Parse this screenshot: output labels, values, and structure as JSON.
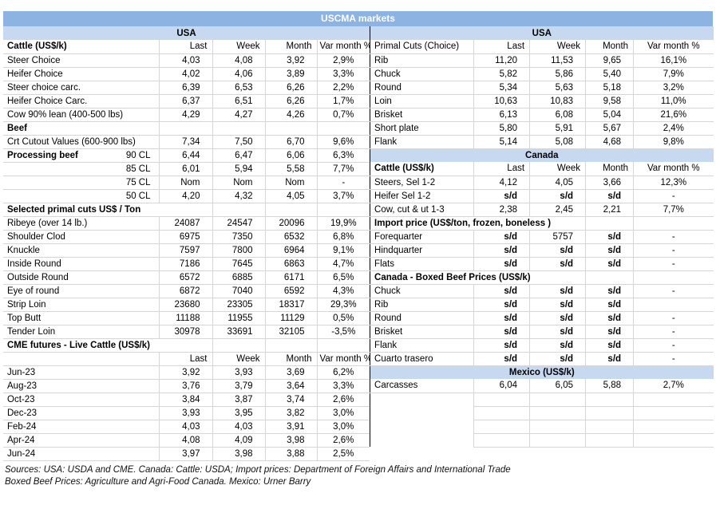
{
  "title": "USCMA markets",
  "colors": {
    "title_bg": "#8db3e2",
    "band_bg": "#c6d9f1",
    "grid": "#d6d6d6",
    "divider": "#000000"
  },
  "columns": [
    "Last",
    "Week",
    "Month",
    "Var month %"
  ],
  "left_table": {
    "rows": [
      {
        "t": "band",
        "label": "USA"
      },
      {
        "t": "row",
        "label": "Cattle (US$/k)",
        "bold": true,
        "header": true,
        "values": [
          "Last",
          "Week",
          "Month",
          "Var month %"
        ]
      },
      {
        "t": "row",
        "label": "Steer Choice",
        "values": [
          "4,03",
          "4,08",
          "3,92",
          "2,9%"
        ]
      },
      {
        "t": "row",
        "label": "Heifer Choice",
        "values": [
          "4,02",
          "4,06",
          "3,89",
          "3,3%"
        ]
      },
      {
        "t": "row",
        "label": "Steer choice carc.",
        "values": [
          "6,39",
          "6,53",
          "6,26",
          "2,2%"
        ]
      },
      {
        "t": "row",
        "label": "Heifer Choice Carc.",
        "values": [
          "6,37",
          "6,51",
          "6,26",
          "1,7%"
        ]
      },
      {
        "t": "row",
        "label": "Cow 90% lean (400-500 lbs)",
        "values": [
          "4,29",
          "4,27",
          "4,26",
          "0,7%"
        ]
      },
      {
        "t": "row",
        "label": "Beef",
        "bold": true,
        "values": [
          "",
          "",
          "",
          ""
        ]
      },
      {
        "t": "row",
        "label": "Crt Cutout Values (600-900 lbs)",
        "values": [
          "7,34",
          "7,50",
          "6,70",
          "9,6%"
        ]
      },
      {
        "t": "row",
        "label": "Processing beef",
        "label_right": "90 CL",
        "bold": true,
        "values": [
          "6,44",
          "6,47",
          "6,06",
          "6,3%"
        ]
      },
      {
        "t": "row",
        "label": "85 CL",
        "align": "right",
        "values": [
          "6,01",
          "5,94",
          "5,58",
          "7,7%"
        ]
      },
      {
        "t": "row",
        "label": "75 CL",
        "align": "right",
        "values": [
          "Nom",
          "Nom",
          "Nom",
          "-"
        ]
      },
      {
        "t": "row",
        "label": "50 CL",
        "align": "right",
        "values": [
          "4,20",
          "4,32",
          "4,05",
          "3,7%"
        ]
      },
      {
        "t": "row",
        "label": "Selected primal cuts US$ / Ton",
        "bold": true,
        "span": 2,
        "values": [
          "",
          "",
          ""
        ]
      },
      {
        "t": "row",
        "label": "Ribeye (over 14 lb.)",
        "values": [
          "24087",
          "24547",
          "20096",
          "19,9%"
        ]
      },
      {
        "t": "row",
        "label": "Shoulder Clod",
        "values": [
          "6975",
          "7350",
          "6532",
          "6,8%"
        ]
      },
      {
        "t": "row",
        "label": "Knuckle",
        "values": [
          "7597",
          "7800",
          "6964",
          "9,1%"
        ]
      },
      {
        "t": "row",
        "label": "Inside Round",
        "values": [
          "7186",
          "7645",
          "6863",
          "4,7%"
        ]
      },
      {
        "t": "row",
        "label": "Outside Round",
        "values": [
          "6572",
          "6885",
          "6171",
          "6,5%"
        ]
      },
      {
        "t": "row",
        "label": "Eye of round",
        "values": [
          "6872",
          "7040",
          "6592",
          "4,3%"
        ]
      },
      {
        "t": "row",
        "label": "Strip Loin",
        "values": [
          "23680",
          "23305",
          "18317",
          "29,3%"
        ]
      },
      {
        "t": "row",
        "label": "Top Butt",
        "values": [
          "11188",
          "11955",
          "11129",
          "0,5%"
        ]
      },
      {
        "t": "row",
        "label": "Tender Loin",
        "values": [
          "30978",
          "33691",
          "32105",
          "-3,5%"
        ]
      },
      {
        "t": "row",
        "label": "CME futures - Live Cattle (US$/k)",
        "bold": true,
        "span": 2,
        "values": [
          "",
          "",
          ""
        ]
      },
      {
        "t": "row",
        "label": "",
        "header": true,
        "values": [
          "Last",
          "Week",
          "Month",
          "Var month %"
        ]
      },
      {
        "t": "row",
        "label": "Jun-23",
        "values": [
          "3,92",
          "3,93",
          "3,69",
          "6,2%"
        ]
      },
      {
        "t": "row",
        "label": "Aug-23",
        "values": [
          "3,76",
          "3,79",
          "3,64",
          "3,3%"
        ]
      },
      {
        "t": "row",
        "label": "Oct-23",
        "values": [
          "3,84",
          "3,87",
          "3,74",
          "2,6%"
        ]
      },
      {
        "t": "row",
        "label": "Dec-23",
        "values": [
          "3,93",
          "3,95",
          "3,82",
          "3,0%"
        ]
      },
      {
        "t": "row",
        "label": "Feb-24",
        "values": [
          "4,03",
          "4,03",
          "3,91",
          "3,0%"
        ]
      },
      {
        "t": "row",
        "label": "Apr-24",
        "values": [
          "4,08",
          "4,09",
          "3,98",
          "2,6%"
        ]
      },
      {
        "t": "row",
        "label": "Jun-24",
        "values": [
          "3,97",
          "3,98",
          "3,88",
          "2,5%"
        ]
      }
    ]
  },
  "right_table": {
    "rows": [
      {
        "t": "band",
        "label": "USA"
      },
      {
        "t": "row",
        "label": "Primal Cuts (Choice)",
        "header": true,
        "values": [
          "Last",
          "Week",
          "Month",
          "Var month %"
        ]
      },
      {
        "t": "row",
        "label": "Rib",
        "values": [
          "11,20",
          "11,53",
          "9,65",
          "16,1%"
        ]
      },
      {
        "t": "row",
        "label": "Chuck",
        "values": [
          "5,82",
          "5,86",
          "5,40",
          "7,9%"
        ]
      },
      {
        "t": "row",
        "label": "Round",
        "values": [
          "5,34",
          "5,63",
          "5,18",
          "3,2%"
        ]
      },
      {
        "t": "row",
        "label": "Loin",
        "values": [
          "10,63",
          "10,83",
          "9,58",
          "11,0%"
        ]
      },
      {
        "t": "row",
        "label": "Brisket",
        "values": [
          "6,13",
          "6,08",
          "5,04",
          "21,6%"
        ]
      },
      {
        "t": "row",
        "label": "Short plate",
        "values": [
          "5,80",
          "5,91",
          "5,67",
          "2,4%"
        ]
      },
      {
        "t": "row",
        "label": "Flank",
        "values": [
          "5,14",
          "5,08",
          "4,68",
          "9,8%"
        ]
      },
      {
        "t": "band",
        "label": "Canada"
      },
      {
        "t": "row",
        "label": "Cattle (US$/k)",
        "bold": true,
        "header": true,
        "values": [
          "Last",
          "Week",
          "Month",
          "Var month %"
        ]
      },
      {
        "t": "row",
        "label": "Steers, Sel 1-2",
        "values": [
          "4,12",
          "4,05",
          "3,66",
          "12,3%"
        ]
      },
      {
        "t": "row",
        "label": "Heifer Sel 1-2",
        "values": [
          "s/d",
          "s/d",
          "s/d",
          "-"
        ]
      },
      {
        "t": "row",
        "label": "Cow, cut & ut 1-3",
        "values": [
          "2,38",
          "2,45",
          "2,21",
          "7,7%"
        ]
      },
      {
        "t": "row",
        "label": "Import price (US$/ton, frozen, boneless )",
        "bold": true,
        "span": 3,
        "values": [
          "",
          ""
        ]
      },
      {
        "t": "row",
        "label": "Forequarter",
        "values": [
          "s/d",
          "5757",
          "s/d",
          "-"
        ]
      },
      {
        "t": "row",
        "label": "Hindquarter",
        "values": [
          "s/d",
          "s/d",
          "s/d",
          "-"
        ]
      },
      {
        "t": "row",
        "label": "Flats",
        "values": [
          "s/d",
          "s/d",
          "s/d",
          "-"
        ]
      },
      {
        "t": "row",
        "label": "Canada - Boxed Beef Prices (US$/k)",
        "bold": true,
        "span": 3,
        "values": [
          "",
          ""
        ]
      },
      {
        "t": "row",
        "label": "Chuck",
        "values": [
          "s/d",
          "s/d",
          "s/d",
          "-"
        ]
      },
      {
        "t": "row",
        "label": "Rib",
        "values": [
          "s/d",
          "s/d",
          "s/d",
          ""
        ]
      },
      {
        "t": "row",
        "label": "Round",
        "values": [
          "s/d",
          "s/d",
          "s/d",
          "-"
        ]
      },
      {
        "t": "row",
        "label": "Brisket",
        "values": [
          "s/d",
          "s/d",
          "s/d",
          "-"
        ]
      },
      {
        "t": "row",
        "label": "Flank",
        "values": [
          "s/d",
          "s/d",
          "s/d",
          "-"
        ]
      },
      {
        "t": "row",
        "label": "Cuarto trasero",
        "values": [
          "s/d",
          "s/d",
          "s/d",
          "-"
        ]
      },
      {
        "t": "band",
        "label": "Mexico (US$/k)"
      },
      {
        "t": "row",
        "label": "Carcasses",
        "values": [
          "6,04",
          "6,05",
          "5,88",
          "2,7%"
        ]
      },
      {
        "t": "empty"
      },
      {
        "t": "empty"
      },
      {
        "t": "empty"
      },
      {
        "t": "empty"
      }
    ]
  },
  "footer": {
    "line1": "Sources: USA: USDA and CME. Canada: Cattle: USDA; Import prices: Department of Foreign Affairs and International Trade",
    "line2": "Boxed Beef Prices: Agriculture and Agri-Food Canada. Mexico: Urner Barry"
  }
}
